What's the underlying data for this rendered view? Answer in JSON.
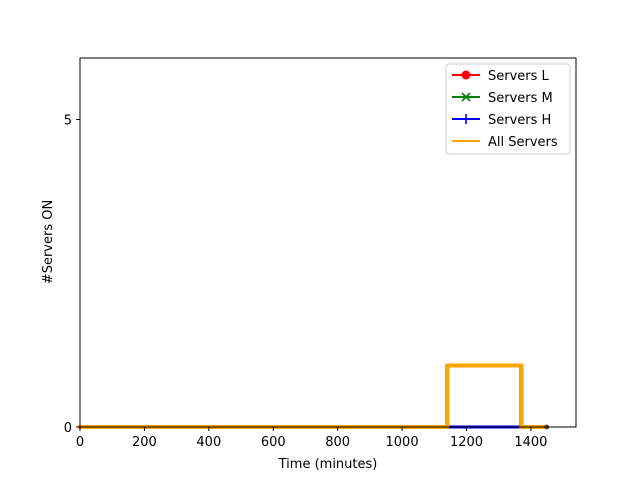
{
  "chart_data": {
    "type": "line",
    "title": "",
    "xlabel": "Time (minutes)",
    "ylabel": "#Servers ON",
    "xlim": [
      0,
      1540
    ],
    "ylim": [
      0,
      6
    ],
    "xticks": [
      0,
      200,
      400,
      600,
      800,
      1000,
      1200,
      1400
    ],
    "yticks": [
      0,
      5
    ],
    "grid": false,
    "legend_position": "top-right",
    "series": [
      {
        "name": "Servers L",
        "color": "#ff0000",
        "marker": "circle",
        "points": [
          [
            0,
            0
          ],
          [
            1140,
            0
          ],
          [
            1140,
            1
          ],
          [
            1370,
            1
          ],
          [
            1370,
            0
          ],
          [
            1440,
            0
          ]
        ]
      },
      {
        "name": "Servers M",
        "color": "#008000",
        "marker": "x",
        "points": [
          [
            0,
            0
          ],
          [
            1440,
            0
          ]
        ]
      },
      {
        "name": "Servers H",
        "color": "#0000ff",
        "marker": "plus",
        "points": [
          [
            0,
            0
          ],
          [
            1440,
            0
          ]
        ]
      },
      {
        "name": "All Servers",
        "color": "#ffa500",
        "marker": "none",
        "points": [
          [
            0,
            0
          ],
          [
            1140,
            0
          ],
          [
            1140,
            1
          ],
          [
            1370,
            1
          ],
          [
            1370,
            0
          ],
          [
            1440,
            0
          ]
        ]
      }
    ]
  }
}
